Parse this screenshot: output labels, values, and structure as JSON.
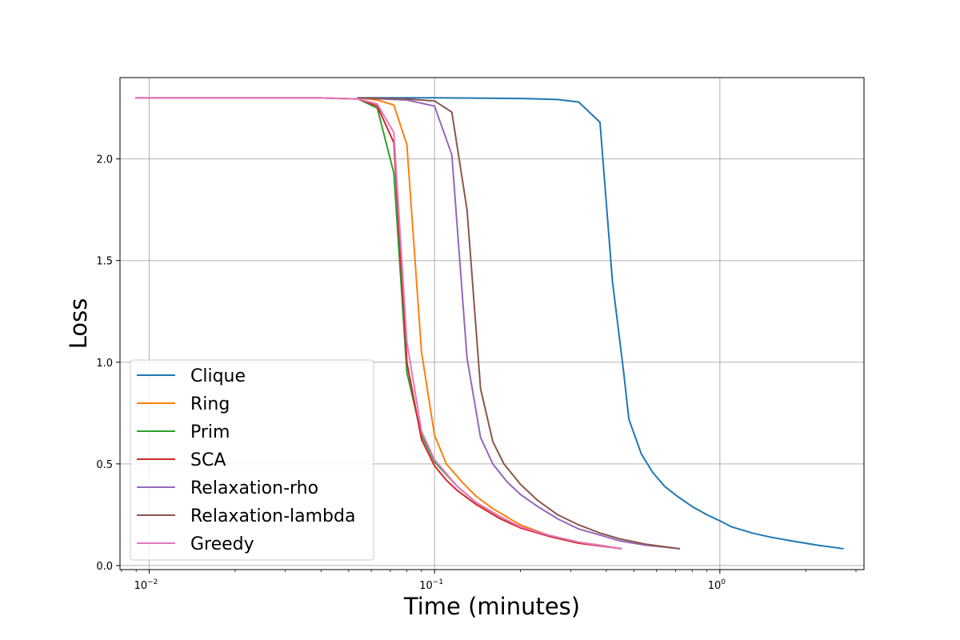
{
  "chart_data": {
    "type": "line",
    "title": "",
    "xlabel": "Time (minutes)",
    "ylabel": "Loss",
    "xscale": "log",
    "xlim": [
      0.0079,
      3.2
    ],
    "ylim": [
      -0.02,
      2.4
    ],
    "grid": true,
    "legend_position": "lower-left",
    "x_ticks": [
      {
        "value": 0.01,
        "base": "10",
        "exp": "−2"
      },
      {
        "value": 0.1,
        "base": "10",
        "exp": "−1"
      },
      {
        "value": 1,
        "base": "10",
        "exp": "0"
      }
    ],
    "y_ticks": [
      {
        "value": 0.0,
        "label": "0.0"
      },
      {
        "value": 0.5,
        "label": "0.5"
      },
      {
        "value": 1.0,
        "label": "1.0"
      },
      {
        "value": 1.5,
        "label": "1.5"
      },
      {
        "value": 2.0,
        "label": "2.0"
      }
    ],
    "series": [
      {
        "name": "Clique",
        "color": "#1f77b4",
        "x": [
          0.054,
          0.1,
          0.15,
          0.21,
          0.27,
          0.32,
          0.38,
          0.42,
          0.46,
          0.48,
          0.53,
          0.58,
          0.64,
          0.71,
          0.8,
          0.9,
          1.0,
          1.1,
          1.3,
          1.5,
          1.8,
          2.2,
          2.7
        ],
        "y": [
          2.301,
          2.301,
          2.299,
          2.297,
          2.292,
          2.28,
          2.18,
          1.4,
          0.95,
          0.72,
          0.55,
          0.46,
          0.39,
          0.34,
          0.29,
          0.25,
          0.22,
          0.19,
          0.16,
          0.14,
          0.12,
          0.1,
          0.083
        ]
      },
      {
        "name": "Ring",
        "color": "#ff7f0e",
        "x": [
          0.054,
          0.063,
          0.072,
          0.08,
          0.09,
          0.1,
          0.11,
          0.125,
          0.14,
          0.16,
          0.2,
          0.25,
          0.3,
          0.38,
          0.45
        ],
        "y": [
          2.3,
          2.29,
          2.265,
          2.07,
          1.05,
          0.64,
          0.5,
          0.41,
          0.34,
          0.28,
          0.2,
          0.15,
          0.12,
          0.1,
          0.083
        ]
      },
      {
        "name": "Prim",
        "color": "#2ca02c",
        "x": [
          0.009,
          0.04,
          0.054,
          0.063,
          0.072,
          0.08,
          0.09,
          0.1,
          0.12,
          0.14,
          0.17,
          0.2,
          0.25,
          0.32,
          0.45
        ],
        "y": [
          2.3,
          2.3,
          2.295,
          2.25,
          1.93,
          0.95,
          0.64,
          0.51,
          0.39,
          0.31,
          0.24,
          0.19,
          0.15,
          0.115,
          0.083
        ]
      },
      {
        "name": "SCA",
        "color": "#d62728",
        "x": [
          0.009,
          0.04,
          0.054,
          0.063,
          0.072,
          0.08,
          0.09,
          0.1,
          0.11,
          0.12,
          0.14,
          0.17,
          0.2,
          0.25,
          0.32,
          0.45
        ],
        "y": [
          2.3,
          2.3,
          2.295,
          2.26,
          2.08,
          1.0,
          0.62,
          0.49,
          0.42,
          0.37,
          0.3,
          0.23,
          0.185,
          0.145,
          0.11,
          0.083
        ]
      },
      {
        "name": "Relaxation-rho",
        "color": "#9467bd",
        "x": [
          0.054,
          0.08,
          0.1,
          0.115,
          0.13,
          0.145,
          0.16,
          0.18,
          0.2,
          0.23,
          0.27,
          0.32,
          0.38,
          0.45,
          0.55,
          0.72
        ],
        "y": [
          2.3,
          2.29,
          2.26,
          2.02,
          1.02,
          0.63,
          0.5,
          0.41,
          0.35,
          0.29,
          0.23,
          0.18,
          0.15,
          0.12,
          0.1,
          0.083
        ]
      },
      {
        "name": "Relaxation-lambda",
        "color": "#8c564b",
        "x": [
          0.054,
          0.08,
          0.1,
          0.115,
          0.13,
          0.145,
          0.16,
          0.175,
          0.2,
          0.23,
          0.27,
          0.32,
          0.38,
          0.45,
          0.55,
          0.72
        ],
        "y": [
          2.3,
          2.295,
          2.285,
          2.23,
          1.75,
          0.87,
          0.61,
          0.5,
          0.4,
          0.32,
          0.25,
          0.2,
          0.16,
          0.13,
          0.105,
          0.083
        ]
      },
      {
        "name": "Greedy",
        "color": "#e377c2",
        "x": [
          0.009,
          0.04,
          0.054,
          0.063,
          0.072,
          0.08,
          0.09,
          0.1,
          0.12,
          0.14,
          0.17,
          0.2,
          0.25,
          0.32,
          0.45
        ],
        "y": [
          2.3,
          2.3,
          2.295,
          2.27,
          2.13,
          1.1,
          0.66,
          0.52,
          0.39,
          0.31,
          0.24,
          0.19,
          0.15,
          0.115,
          0.083
        ]
      }
    ]
  }
}
